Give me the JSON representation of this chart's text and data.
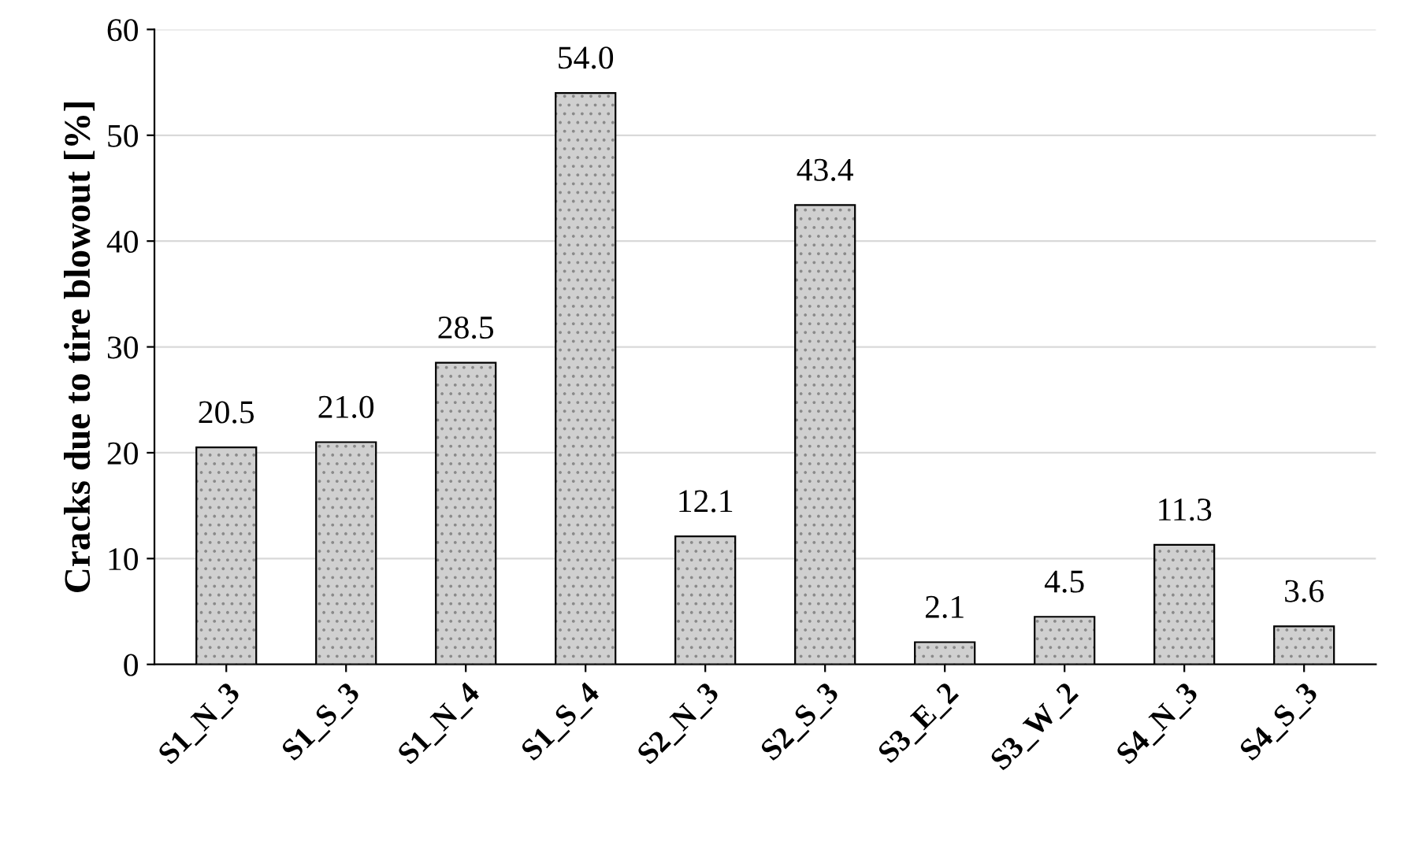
{
  "chart_data": {
    "type": "bar",
    "ylabel": "Cracks due to tire blowout [%]",
    "categories": [
      "S1_N_3",
      "S1_S_3",
      "S1_N_4",
      "S1_S_4",
      "S2_N_3",
      "S2_S_3",
      "S3_E_2",
      "S3_W_2",
      "S4_N_3",
      "S4_S_3"
    ],
    "values": [
      20.5,
      21.0,
      28.5,
      54.0,
      12.1,
      43.4,
      2.1,
      4.5,
      11.3,
      3.6
    ],
    "value_labels": [
      "20.5",
      "21.0",
      "28.5",
      "54.0",
      "12.1",
      "43.4",
      "2.1",
      "4.5",
      "11.3",
      "3.6"
    ],
    "color": "#d0d0d0",
    "ylim": [
      0,
      60
    ],
    "yticks": [
      0,
      10,
      20,
      30,
      40,
      50,
      60
    ],
    "grid": "y"
  }
}
